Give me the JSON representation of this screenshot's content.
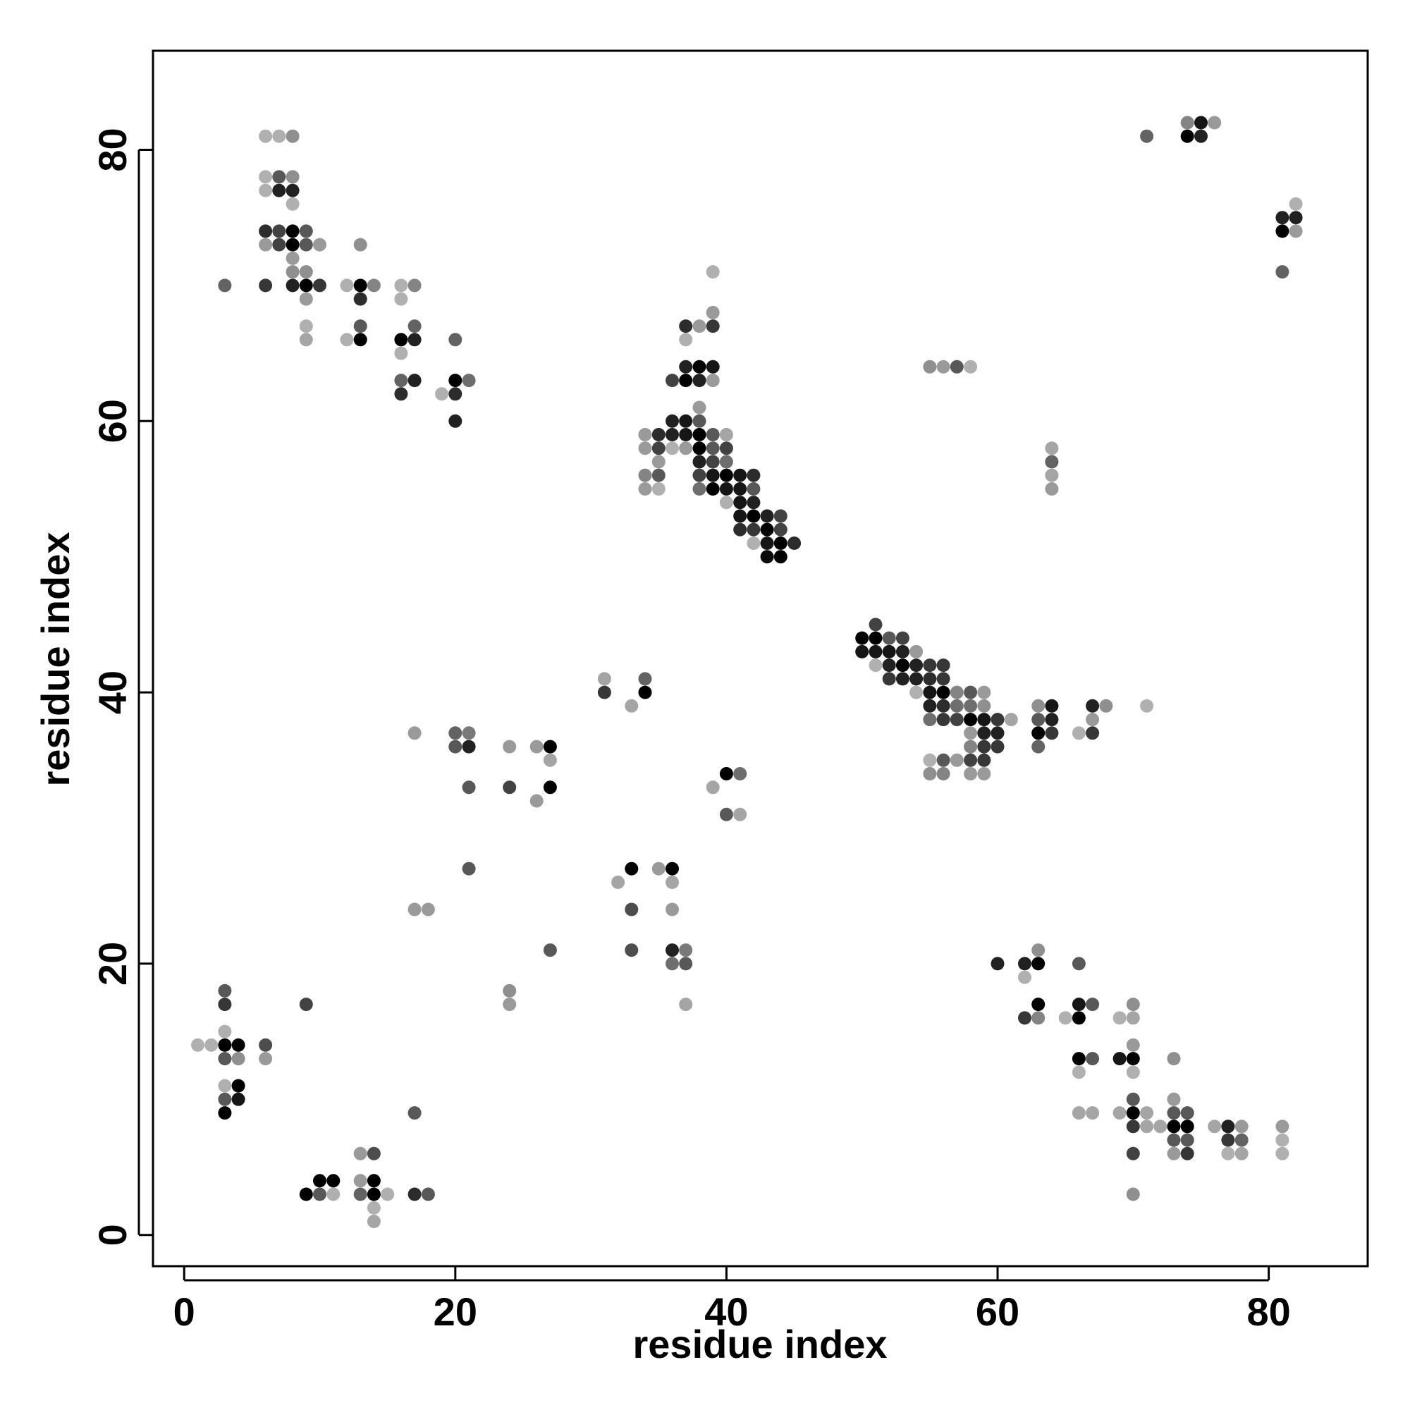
{
  "chart_data": {
    "type": "scatter",
    "title": "",
    "xlabel": "residue index",
    "ylabel": "residue index",
    "xlim": [
      -2.3,
      87.3
    ],
    "ylim": [
      -2.3,
      87.3
    ],
    "xticks": [
      0,
      20,
      40,
      60,
      80
    ],
    "yticks": [
      0,
      20,
      40,
      60,
      80
    ],
    "grid": false,
    "legend": "none",
    "color_encoding": "grayscale intensity (0 = light gray, 1 = black)",
    "points": [
      [
        3,
        70,
        0.55
      ],
      [
        6,
        70,
        0.75
      ],
      [
        8,
        70,
        0.85
      ],
      [
        9,
        70,
        1
      ],
      [
        10,
        70,
        0.75
      ],
      [
        12,
        70,
        0.2
      ],
      [
        13,
        70,
        1
      ],
      [
        14,
        70,
        0.4
      ],
      [
        16,
        70,
        0.2
      ],
      [
        17,
        70,
        0.4
      ],
      [
        6,
        74,
        0.8
      ],
      [
        7,
        74,
        0.7
      ],
      [
        8,
        74,
        1
      ],
      [
        9,
        74,
        0.6
      ],
      [
        6,
        73,
        0.3
      ],
      [
        7,
        73,
        0.7
      ],
      [
        8,
        73,
        1
      ],
      [
        9,
        73,
        0.6
      ],
      [
        10,
        73,
        0.3
      ],
      [
        13,
        73,
        0.35
      ],
      [
        6,
        77,
        0.2
      ],
      [
        7,
        77,
        0.85
      ],
      [
        8,
        77,
        0.85
      ],
      [
        6,
        78,
        0.2
      ],
      [
        7,
        78,
        0.6
      ],
      [
        8,
        78,
        0.35
      ],
      [
        8,
        76,
        0.2
      ],
      [
        6,
        81,
        0.2
      ],
      [
        7,
        81,
        0.2
      ],
      [
        8,
        81,
        0.35
      ],
      [
        8,
        72,
        0.3
      ],
      [
        8,
        71,
        0.35
      ],
      [
        9,
        71,
        0.35
      ],
      [
        9,
        69,
        0.3
      ],
      [
        9,
        67,
        0.2
      ],
      [
        9,
        66,
        0.25
      ],
      [
        13,
        69,
        0.8
      ],
      [
        13,
        67,
        0.6
      ],
      [
        12,
        66,
        0.2
      ],
      [
        13,
        66,
        1
      ],
      [
        16,
        69,
        0.2
      ],
      [
        17,
        67,
        0.55
      ],
      [
        16,
        66,
        1
      ],
      [
        17,
        66,
        0.85
      ],
      [
        16,
        65,
        0.2
      ],
      [
        16,
        63,
        0.55
      ],
      [
        17,
        63,
        0.85
      ],
      [
        16,
        62,
        0.8
      ],
      [
        20,
        66,
        0.55
      ],
      [
        20,
        63,
        1
      ],
      [
        21,
        63,
        0.5
      ],
      [
        19,
        62,
        0.2
      ],
      [
        20,
        62,
        0.8
      ],
      [
        20,
        60,
        0.85
      ],
      [
        36,
        63,
        0.7
      ],
      [
        37,
        63,
        1
      ],
      [
        38,
        63,
        0.85
      ],
      [
        39,
        63,
        0.3
      ],
      [
        37,
        64,
        0.85
      ],
      [
        38,
        64,
        1
      ],
      [
        39,
        64,
        0.9
      ],
      [
        37,
        67,
        0.8
      ],
      [
        38,
        67,
        0.3
      ],
      [
        39,
        67,
        0.75
      ],
      [
        39,
        68,
        0.3
      ],
      [
        39,
        71,
        0.2
      ],
      [
        37,
        66,
        0.2
      ],
      [
        38,
        61,
        0.3
      ],
      [
        36,
        60,
        0.85
      ],
      [
        37,
        60,
        0.9
      ],
      [
        38,
        60,
        0.6
      ],
      [
        34,
        59,
        0.3
      ],
      [
        35,
        59,
        0.8
      ],
      [
        36,
        59,
        0.85
      ],
      [
        37,
        59,
        0.9
      ],
      [
        38,
        59,
        1
      ],
      [
        39,
        59,
        0.6
      ],
      [
        40,
        59,
        0.25
      ],
      [
        34,
        58,
        0.3
      ],
      [
        35,
        58,
        0.7
      ],
      [
        36,
        58,
        0.2
      ],
      [
        37,
        58,
        0.3
      ],
      [
        38,
        58,
        1
      ],
      [
        39,
        58,
        0.6
      ],
      [
        40,
        58,
        0.7
      ],
      [
        35,
        57,
        0.3
      ],
      [
        38,
        57,
        0.85
      ],
      [
        39,
        57,
        0.7
      ],
      [
        40,
        57,
        0.5
      ],
      [
        34,
        56,
        0.4
      ],
      [
        35,
        56,
        0.6
      ],
      [
        38,
        56,
        0.7
      ],
      [
        39,
        56,
        0.9
      ],
      [
        40,
        56,
        1
      ],
      [
        41,
        56,
        0.9
      ],
      [
        42,
        56,
        0.8
      ],
      [
        34,
        55,
        0.3
      ],
      [
        35,
        55,
        0.2
      ],
      [
        38,
        55,
        0.5
      ],
      [
        39,
        55,
        1
      ],
      [
        40,
        55,
        0.9
      ],
      [
        41,
        55,
        0.9
      ],
      [
        42,
        55,
        0.6
      ],
      [
        40,
        54,
        0.2
      ],
      [
        41,
        54,
        0.9
      ],
      [
        42,
        54,
        0.85
      ],
      [
        41,
        53,
        0.9
      ],
      [
        42,
        53,
        1
      ],
      [
        43,
        53,
        0.85
      ],
      [
        44,
        53,
        0.7
      ],
      [
        41,
        52,
        0.8
      ],
      [
        42,
        52,
        0.75
      ],
      [
        43,
        52,
        1
      ],
      [
        44,
        52,
        0.7
      ],
      [
        42,
        51,
        0.2
      ],
      [
        43,
        51,
        0.9
      ],
      [
        44,
        51,
        1
      ],
      [
        45,
        51,
        0.8
      ],
      [
        43,
        50,
        0.95
      ],
      [
        44,
        50,
        1
      ],
      [
        55,
        64,
        0.35
      ],
      [
        56,
        64,
        0.3
      ],
      [
        57,
        64,
        0.6
      ],
      [
        58,
        64,
        0.2
      ],
      [
        64,
        58,
        0.25
      ],
      [
        64,
        57,
        0.55
      ],
      [
        64,
        56,
        0.25
      ],
      [
        64,
        55,
        0.3
      ],
      [
        71,
        81,
        0.55
      ],
      [
        74,
        82,
        0.4
      ],
      [
        75,
        82,
        0.9
      ],
      [
        76,
        82,
        0.3
      ],
      [
        74,
        81,
        1
      ],
      [
        75,
        81,
        0.85
      ],
      [
        82,
        76,
        0.2
      ],
      [
        81,
        75,
        0.85
      ],
      [
        82,
        75,
        0.85
      ],
      [
        81,
        74,
        1
      ],
      [
        82,
        74,
        0.3
      ],
      [
        81,
        71,
        0.55
      ],
      [
        50,
        44,
        1
      ],
      [
        51,
        44,
        1
      ],
      [
        52,
        44,
        0.6
      ],
      [
        53,
        44,
        0.7
      ],
      [
        51,
        45,
        0.7
      ],
      [
        50,
        43,
        0.9
      ],
      [
        51,
        43,
        0.9
      ],
      [
        52,
        43,
        0.9
      ],
      [
        53,
        43,
        0.85
      ],
      [
        54,
        43,
        0.3
      ],
      [
        51,
        42,
        0.2
      ],
      [
        52,
        42,
        0.85
      ],
      [
        53,
        42,
        1
      ],
      [
        54,
        42,
        0.85
      ],
      [
        55,
        42,
        0.75
      ],
      [
        56,
        42,
        0.75
      ],
      [
        52,
        41,
        0.75
      ],
      [
        53,
        41,
        0.85
      ],
      [
        54,
        41,
        0.85
      ],
      [
        55,
        41,
        0.8
      ],
      [
        56,
        41,
        0.75
      ],
      [
        54,
        40,
        0.2
      ],
      [
        55,
        40,
        0.9
      ],
      [
        56,
        40,
        1
      ],
      [
        57,
        40,
        0.4
      ],
      [
        58,
        40,
        0.6
      ],
      [
        59,
        40,
        0.3
      ],
      [
        55,
        39,
        0.85
      ],
      [
        56,
        39,
        0.8
      ],
      [
        57,
        39,
        0.5
      ],
      [
        58,
        39,
        0.5
      ],
      [
        59,
        39,
        0.35
      ],
      [
        55,
        38,
        0.5
      ],
      [
        56,
        38,
        0.75
      ],
      [
        57,
        38,
        0.7
      ],
      [
        58,
        38,
        1
      ],
      [
        59,
        38,
        0.9
      ],
      [
        60,
        38,
        0.75
      ],
      [
        61,
        38,
        0.25
      ],
      [
        58,
        37,
        0.3
      ],
      [
        59,
        37,
        0.85
      ],
      [
        60,
        37,
        0.85
      ],
      [
        58,
        36,
        0.4
      ],
      [
        59,
        36,
        0.75
      ],
      [
        60,
        36,
        0.75
      ],
      [
        55,
        35,
        0.2
      ],
      [
        56,
        35,
        0.6
      ],
      [
        57,
        35,
        0.3
      ],
      [
        58,
        35,
        0.7
      ],
      [
        59,
        35,
        0.75
      ],
      [
        55,
        34,
        0.35
      ],
      [
        56,
        34,
        0.4
      ],
      [
        58,
        34,
        0.3
      ],
      [
        59,
        34,
        0.3
      ],
      [
        63,
        39,
        0.35
      ],
      [
        64,
        39,
        0.9
      ],
      [
        63,
        38,
        0.6
      ],
      [
        64,
        38,
        0.85
      ],
      [
        63,
        37,
        1
      ],
      [
        64,
        37,
        0.75
      ],
      [
        63,
        36,
        0.55
      ],
      [
        67,
        39,
        0.85
      ],
      [
        68,
        39,
        0.35
      ],
      [
        67,
        38,
        0.3
      ],
      [
        66,
        37,
        0.2
      ],
      [
        67,
        37,
        0.75
      ],
      [
        71,
        39,
        0.2
      ],
      [
        31,
        41,
        0.25
      ],
      [
        34,
        41,
        0.55
      ],
      [
        31,
        40,
        0.75
      ],
      [
        33,
        39,
        0.25
      ],
      [
        34,
        40,
        1
      ],
      [
        17,
        37,
        0.3
      ],
      [
        20,
        37,
        0.55
      ],
      [
        21,
        37,
        0.45
      ],
      [
        20,
        36,
        0.6
      ],
      [
        21,
        36,
        0.85
      ],
      [
        21,
        33,
        0.6
      ],
      [
        24,
        36,
        0.3
      ],
      [
        26,
        36,
        0.3
      ],
      [
        27,
        36,
        1
      ],
      [
        27,
        35,
        0.25
      ],
      [
        24,
        33,
        0.7
      ],
      [
        27,
        33,
        1
      ],
      [
        26,
        32,
        0.3
      ],
      [
        40,
        34,
        1
      ],
      [
        41,
        34,
        0.5
      ],
      [
        39,
        33,
        0.25
      ],
      [
        40,
        31,
        0.6
      ],
      [
        41,
        31,
        0.25
      ],
      [
        21,
        27,
        0.6
      ],
      [
        17,
        24,
        0.3
      ],
      [
        18,
        24,
        0.3
      ],
      [
        32,
        26,
        0.25
      ],
      [
        33,
        27,
        1
      ],
      [
        35,
        27,
        0.3
      ],
      [
        36,
        27,
        1
      ],
      [
        36,
        26,
        0.25
      ],
      [
        33,
        24,
        0.65
      ],
      [
        36,
        24,
        0.3
      ],
      [
        27,
        21,
        0.6
      ],
      [
        33,
        21,
        0.65
      ],
      [
        36,
        21,
        0.85
      ],
      [
        37,
        21,
        0.45
      ],
      [
        36,
        20,
        0.5
      ],
      [
        37,
        20,
        0.6
      ],
      [
        37,
        17,
        0.25
      ],
      [
        24,
        18,
        0.35
      ],
      [
        24,
        17,
        0.3
      ],
      [
        9,
        17,
        0.7
      ],
      [
        3,
        18,
        0.6
      ],
      [
        3,
        17,
        0.75
      ],
      [
        3,
        15,
        0.2
      ],
      [
        1,
        14,
        0.2
      ],
      [
        2,
        14,
        0.2
      ],
      [
        3,
        14,
        1
      ],
      [
        4,
        14,
        1
      ],
      [
        6,
        14,
        0.65
      ],
      [
        3,
        13,
        0.6
      ],
      [
        4,
        13,
        0.35
      ],
      [
        6,
        13,
        0.3
      ],
      [
        3,
        11,
        0.2
      ],
      [
        4,
        11,
        1
      ],
      [
        3,
        10,
        0.6
      ],
      [
        4,
        10,
        0.9
      ],
      [
        3,
        9,
        1
      ],
      [
        17,
        9,
        0.6
      ],
      [
        13,
        6,
        0.3
      ],
      [
        14,
        6,
        0.65
      ],
      [
        10,
        4,
        1
      ],
      [
        11,
        4,
        1
      ],
      [
        13,
        4,
        0.3
      ],
      [
        14,
        4,
        1
      ],
      [
        9,
        3,
        1
      ],
      [
        10,
        3,
        0.6
      ],
      [
        11,
        3,
        0.2
      ],
      [
        13,
        3,
        0.55
      ],
      [
        14,
        3,
        1
      ],
      [
        15,
        3,
        0.2
      ],
      [
        17,
        3,
        0.8
      ],
      [
        18,
        3,
        0.6
      ],
      [
        14,
        2,
        0.2
      ],
      [
        14,
        1,
        0.25
      ],
      [
        60,
        20,
        0.85
      ],
      [
        62,
        20,
        0.85
      ],
      [
        63,
        20,
        1
      ],
      [
        63,
        21,
        0.35
      ],
      [
        62,
        19,
        0.2
      ],
      [
        66,
        20,
        0.6
      ],
      [
        62,
        16,
        0.75
      ],
      [
        63,
        16,
        0.4
      ],
      [
        63,
        17,
        1
      ],
      [
        65,
        16,
        0.2
      ],
      [
        66,
        16,
        1
      ],
      [
        66,
        17,
        0.9
      ],
      [
        67,
        17,
        0.6
      ],
      [
        69,
        16,
        0.2
      ],
      [
        70,
        16,
        0.25
      ],
      [
        70,
        17,
        0.35
      ],
      [
        66,
        13,
        1
      ],
      [
        67,
        13,
        0.6
      ],
      [
        69,
        13,
        0.9
      ],
      [
        70,
        13,
        1
      ],
      [
        66,
        12,
        0.2
      ],
      [
        70,
        12,
        0.2
      ],
      [
        70,
        14,
        0.3
      ],
      [
        73,
        13,
        0.35
      ],
      [
        66,
        9,
        0.25
      ],
      [
        67,
        9,
        0.25
      ],
      [
        69,
        9,
        0.25
      ],
      [
        70,
        9,
        1
      ],
      [
        71,
        9,
        0.25
      ],
      [
        70,
        10,
        0.6
      ],
      [
        70,
        8,
        0.75
      ],
      [
        71,
        8,
        0.25
      ],
      [
        72,
        8,
        0.25
      ],
      [
        73,
        8,
        1
      ],
      [
        74,
        8,
        1
      ],
      [
        73,
        9,
        0.6
      ],
      [
        74,
        9,
        0.6
      ],
      [
        73,
        10,
        0.3
      ],
      [
        73,
        7,
        0.6
      ],
      [
        74,
        7,
        0.6
      ],
      [
        73,
        6,
        0.3
      ],
      [
        74,
        6,
        0.75
      ],
      [
        76,
        8,
        0.25
      ],
      [
        77,
        8,
        0.85
      ],
      [
        78,
        8,
        0.3
      ],
      [
        77,
        7,
        0.75
      ],
      [
        78,
        7,
        0.55
      ],
      [
        77,
        6,
        0.2
      ],
      [
        78,
        6,
        0.25
      ],
      [
        81,
        8,
        0.3
      ],
      [
        81,
        7,
        0.2
      ],
      [
        81,
        6,
        0.2
      ],
      [
        70,
        6,
        0.7
      ],
      [
        70,
        3,
        0.35
      ]
    ]
  }
}
